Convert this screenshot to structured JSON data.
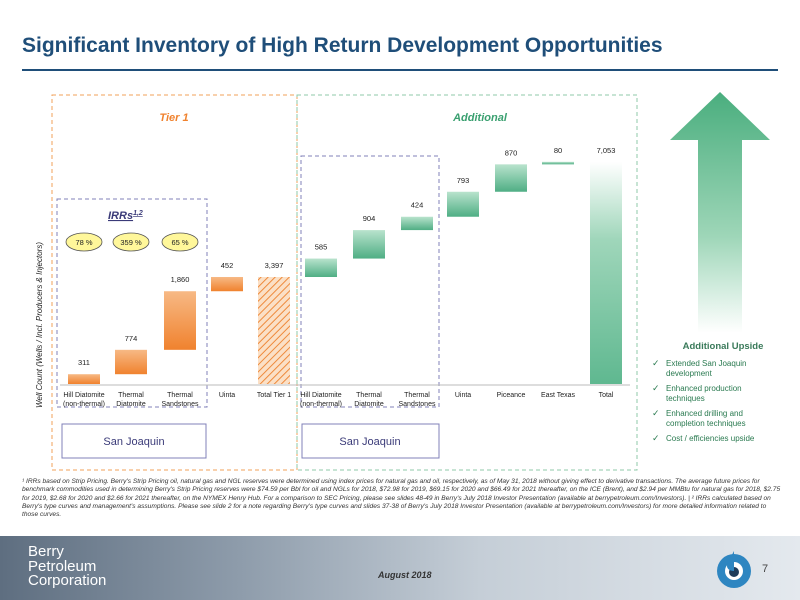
{
  "header": {
    "title": "Significant Inventory of High Return Development Opportunities"
  },
  "chart_data": {
    "type": "bar",
    "subtype": "waterfall",
    "ylabel": "Well Count (Wells / Incl. Producers & Injectors)",
    "groups": [
      {
        "label": "Tier 1",
        "region": "San Joaquin"
      },
      {
        "label": "Additional",
        "region": "San Joaquin"
      }
    ],
    "categories": [
      "Hill Diatomite (non-thermal)",
      "Thermal Diatomite",
      "Thermal Sandstones",
      "Uinta",
      "Total Tier 1",
      "Hill Diatomite (non-thermal)",
      "Thermal Diatomite",
      "Thermal Sandstones",
      "Uinta",
      "Piceance",
      "East Texas",
      "Total"
    ],
    "values": [
      311,
      774,
      1860,
      452,
      3397,
      585,
      904,
      424,
      793,
      870,
      80,
      7053
    ],
    "value_labels": [
      "311",
      "774",
      "1,860",
      "452",
      "3,397",
      "585",
      "904",
      "424",
      "793",
      "870",
      "80",
      "7,053"
    ],
    "bar_kinds": [
      "step",
      "step",
      "step",
      "step",
      "total",
      "step",
      "step",
      "step",
      "step",
      "step",
      "step",
      "total"
    ],
    "irr_box": {
      "label": "IRRs",
      "superscript": "1,2",
      "values": [
        "78 %",
        "359 %",
        "65 %"
      ]
    },
    "legend": "none",
    "grid": false,
    "colors": {
      "tier1": "#f28e3a",
      "additional": "#5fb890",
      "tier1_border": "#f0a05a",
      "additional_border": "#8fcaa8",
      "irr_border": "#8080b8",
      "irr_fill": "#fff79a"
    }
  },
  "upside": {
    "title": "Additional Upside",
    "items": [
      "Extended San Joaquin development",
      "Enhanced production techniques",
      "Enhanced drilling and completion techniques",
      "Cost / efficiencies upside"
    ]
  },
  "footnote": "¹ IRRs based on Strip Pricing. Berry's Strip Pricing oil, natural gas and NGL reserves were determined using index prices for natural gas and oil, respectively, as of May 31, 2018 without giving effect to derivative transactions. The average future prices for benchmark commodities used in determining Berry's Strip Pricing reserves were $74.59 per Bbl for oil and NGLs for 2018, $72.98 for 2019, $69.15 for 2020 and $66.49 for 2021 thereafter, on the ICE (Brent), and $2.94 per MMBtu for natural gas for 2018, $2.75 for 2019, $2.68 for 2020 and $2.66 for 2021 thereafter, on the NYMEX Henry Hub. For a comparison to SEC Pricing, please see slides 48-49 in Berry's July 2018 Investor Presentation (available at berrypetroleum.com/Investors). | ² IRRs calculated based on Berry's type curves and management's assumptions. Please see slide 2 for a note regarding Berry's type curves and slides 37-38 of Berry's July 2018 Investor Presentation (available at berrypetroleum.com/Investors) for more detailed information related to those curves.",
  "footer": {
    "logo_lines": [
      "Berry",
      "Petroleum",
      "Corporation"
    ],
    "date": "August 2018",
    "page": "7",
    "footer_color": "#7a8a9a"
  }
}
